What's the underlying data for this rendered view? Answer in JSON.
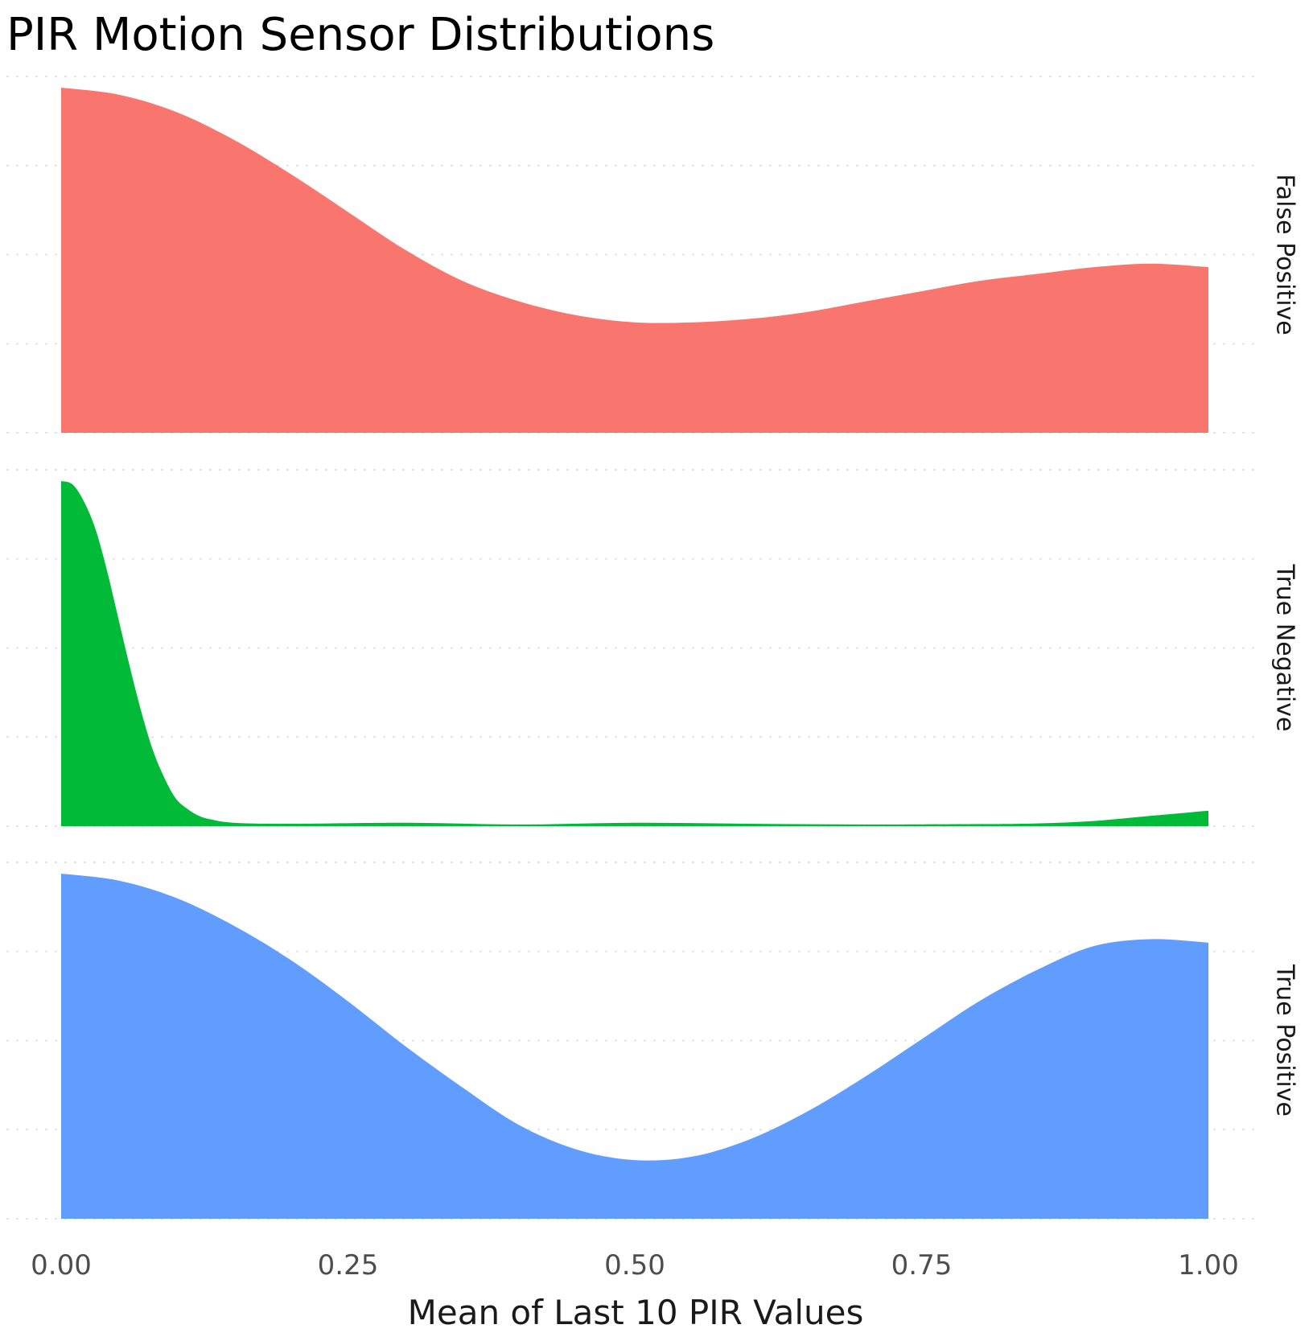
{
  "chart_data": {
    "type": "area",
    "title": "PIR Motion Sensor Distributions",
    "xlabel": "Mean of Last 10 PIR Values",
    "ylabel": "",
    "xlim": [
      0,
      1
    ],
    "x_ticks": [
      "0.00",
      "0.25",
      "0.50",
      "0.75",
      "1.00"
    ],
    "x_tick_values": [
      0,
      0.25,
      0.5,
      0.75,
      1.0
    ],
    "y_ticks_visible": false,
    "grid": "horizontal-dotted",
    "facets": "stacked-rows-with-right-strip-labels",
    "series": [
      {
        "name": "False Positive",
        "color": "#F8766D",
        "x": [
          0,
          0.05,
          0.1,
          0.15,
          0.2,
          0.25,
          0.3,
          0.35,
          0.4,
          0.45,
          0.5,
          0.55,
          0.6,
          0.65,
          0.7,
          0.75,
          0.8,
          0.85,
          0.9,
          0.95,
          1.0
        ],
        "density": [
          1.0,
          0.98,
          0.93,
          0.85,
          0.75,
          0.64,
          0.53,
          0.44,
          0.38,
          0.34,
          0.32,
          0.32,
          0.33,
          0.35,
          0.38,
          0.41,
          0.44,
          0.46,
          0.48,
          0.49,
          0.48
        ]
      },
      {
        "name": "True Negative",
        "color": "#00BA38",
        "x": [
          0,
          0.01,
          0.02,
          0.03,
          0.04,
          0.05,
          0.06,
          0.07,
          0.08,
          0.09,
          0.1,
          0.11,
          0.12,
          0.13,
          0.15,
          0.2,
          0.3,
          0.4,
          0.5,
          0.6,
          0.7,
          0.8,
          0.85,
          0.9,
          0.95,
          1.0
        ],
        "density": [
          1.0,
          0.99,
          0.94,
          0.86,
          0.74,
          0.6,
          0.46,
          0.33,
          0.22,
          0.14,
          0.08,
          0.05,
          0.03,
          0.02,
          0.01,
          0.007,
          0.01,
          0.005,
          0.01,
          0.007,
          0.005,
          0.006,
          0.008,
          0.015,
          0.03,
          0.045
        ]
      },
      {
        "name": "True Positive",
        "color": "#619CFF",
        "x": [
          0,
          0.05,
          0.1,
          0.15,
          0.2,
          0.25,
          0.3,
          0.35,
          0.4,
          0.45,
          0.5,
          0.55,
          0.6,
          0.65,
          0.7,
          0.75,
          0.8,
          0.85,
          0.9,
          0.95,
          1.0
        ],
        "density": [
          1.0,
          0.98,
          0.93,
          0.85,
          0.75,
          0.63,
          0.5,
          0.38,
          0.27,
          0.2,
          0.17,
          0.18,
          0.23,
          0.31,
          0.41,
          0.52,
          0.63,
          0.72,
          0.79,
          0.81,
          0.8
        ]
      }
    ]
  }
}
